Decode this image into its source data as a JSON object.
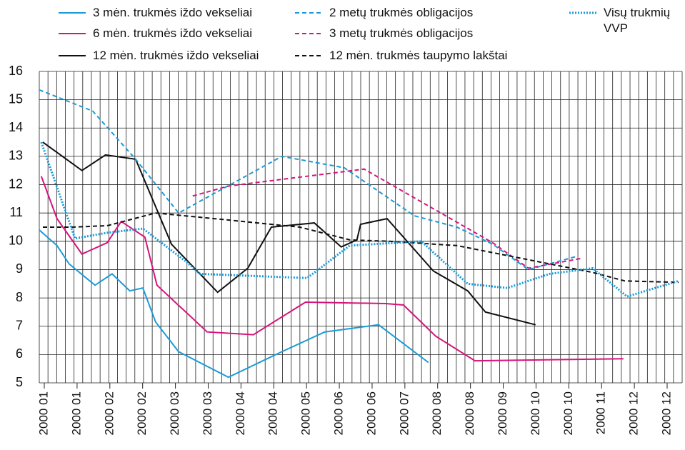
{
  "chart_data": {
    "type": "line",
    "categories": [
      "2000 01",
      "2000 01",
      "2000 02",
      "2000 02",
      "2000 03",
      "2000 03",
      "2000 04",
      "2000 04",
      "2000 05",
      "2000 06",
      "2000 06",
      "2000 07",
      "2000 08",
      "2000 08",
      "2000 09",
      "2000 10",
      "2000 10",
      "2000 11",
      "2000 12",
      "2000 12"
    ],
    "xlim": [
      -0.15,
      19.46
    ],
    "ylim": [
      5,
      16
    ],
    "yticks": [
      5,
      6,
      7,
      8,
      9,
      10,
      11,
      12,
      13,
      14,
      15,
      16
    ],
    "grid": true,
    "series": [
      {
        "name": "3 mėn. trukmės iždo vekseliai",
        "color": "#1a9bd7",
        "style": "solid",
        "x": [
          -0.15,
          0.39,
          0.76,
          1.55,
          2.07,
          2.61,
          3.01,
          3.4,
          4.1,
          5.62,
          7.25,
          8.56,
          10.2,
          11.72
        ],
        "values": [
          10.4,
          9.85,
          9.2,
          8.45,
          8.85,
          8.25,
          8.35,
          7.15,
          6.1,
          5.2,
          6.1,
          6.8,
          7.05,
          5.72
        ]
      },
      {
        "name": "6 mėn. trukmės iždo vekseliai",
        "color": "#d6157b",
        "style": "solid",
        "x": [
          -0.09,
          0.39,
          1.15,
          1.92,
          2.35,
          3.07,
          3.44,
          4.97,
          6.38,
          7.97,
          10.41,
          10.96,
          11.94,
          13.14,
          17.67
        ],
        "values": [
          12.3,
          10.8,
          9.55,
          9.95,
          10.7,
          10.15,
          8.45,
          6.8,
          6.7,
          7.85,
          7.8,
          7.75,
          6.65,
          5.78,
          5.85
        ]
      },
      {
        "name": "12 mėn. trukmės iždo vekseliai",
        "color": "#111111",
        "style": "solid",
        "x": [
          -0.04,
          1.15,
          1.87,
          2.79,
          3.88,
          5.29,
          6.21,
          6.93,
          8.24,
          9.06,
          9.54,
          9.65,
          10.46,
          11.87,
          12.92,
          13.46,
          14.99
        ],
        "values": [
          13.5,
          12.5,
          13.05,
          12.9,
          9.9,
          8.2,
          9.05,
          10.5,
          10.65,
          9.8,
          10.05,
          10.6,
          10.8,
          8.95,
          8.25,
          7.5,
          7.05
        ]
      },
      {
        "name": "2 metų trukmės obligacijos",
        "color": "#1a9bd7",
        "style": "dashed",
        "x": [
          -0.15,
          1.48,
          2.79,
          4.1,
          7.25,
          9.15,
          11.29,
          12.59,
          13.68,
          14.77,
          16.19
        ],
        "values": [
          15.35,
          14.6,
          12.9,
          11.0,
          13.0,
          12.6,
          10.9,
          10.5,
          9.9,
          9.0,
          9.45
        ]
      },
      {
        "name": "3 metų trukmės obligacijos",
        "color": "#d6157b",
        "style": "dashed",
        "x": [
          4.53,
          5.62,
          9.76,
          13.68,
          14.77,
          16.4
        ],
        "values": [
          11.6,
          11.95,
          12.55,
          9.95,
          9.05,
          9.4
        ]
      },
      {
        "name": "12 mėn. trukmės taupymo lakštai",
        "color": "#111111",
        "style": "dashed",
        "x": [
          -0.04,
          0.83,
          1.92,
          3.4,
          5.19,
          7.8,
          9.32,
          10.52,
          12.59,
          14.99,
          16.73,
          17.71,
          19.35
        ],
        "values": [
          10.5,
          10.5,
          10.55,
          11.0,
          10.8,
          10.5,
          10.05,
          10.0,
          9.85,
          9.3,
          8.9,
          8.6,
          8.55
        ]
      },
      {
        "name": "Visų trukmių VVP",
        "color": "#1a9bd7",
        "style": "dotted",
        "x": [
          -0.09,
          0.94,
          1.92,
          3.01,
          4.31,
          4.75,
          8.02,
          9.32,
          11.5,
          12.92,
          14.12,
          15.42,
          16.73,
          17.78,
          19.35
        ],
        "values": [
          13.5,
          10.1,
          10.3,
          10.45,
          9.3,
          8.85,
          8.7,
          9.85,
          10.0,
          8.5,
          8.35,
          8.85,
          9.05,
          8.05,
          8.6
        ]
      }
    ]
  }
}
